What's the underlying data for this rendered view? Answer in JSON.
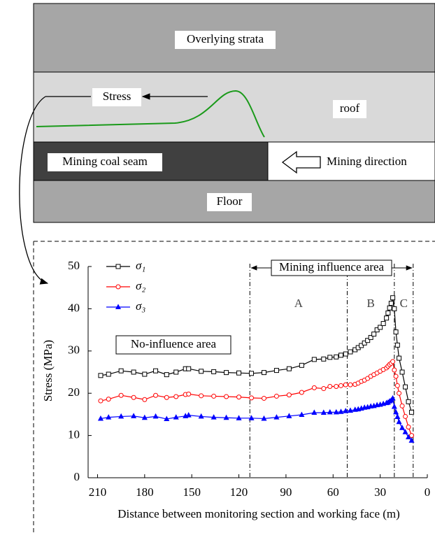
{
  "diagram": {
    "overlying": "Overlying strata",
    "roof": "roof",
    "stress": "Stress",
    "seam": "Mining coal seam",
    "direction": "Mining direction",
    "floor": "Floor"
  },
  "chart_data": {
    "type": "line",
    "x_label": "Distance between monitoring section and working face (m)",
    "y_label": "Stress (MPa)",
    "xlim": [
      216,
      0
    ],
    "xticks": [
      210,
      180,
      150,
      120,
      90,
      60,
      30,
      0
    ],
    "ylim": [
      0,
      50
    ],
    "yticks": [
      0,
      10,
      20,
      30,
      40,
      50
    ],
    "x": [
      208,
      203,
      195,
      187,
      180,
      173,
      166,
      160,
      154,
      152,
      144,
      136,
      128,
      120,
      112,
      104,
      96,
      88,
      80,
      72,
      66,
      62,
      58,
      55,
      52,
      49,
      46,
      44,
      42,
      40,
      38,
      36,
      34,
      32,
      30,
      28,
      26,
      25,
      24,
      23,
      22,
      21,
      20,
      19,
      18,
      16,
      14,
      12,
      10
    ],
    "series": [
      {
        "name": "σ₁",
        "color": "#000000",
        "marker": "square",
        "values": [
          24.2,
          24.5,
          25.3,
          25.0,
          24.5,
          25.3,
          24.4,
          25.0,
          25.8,
          25.8,
          25.2,
          25.1,
          24.9,
          24.8,
          24.7,
          24.9,
          25.4,
          25.8,
          26.6,
          28.0,
          28.1,
          28.5,
          28.6,
          29.0,
          29.3,
          29.8,
          30.3,
          30.8,
          31.3,
          31.9,
          32.5,
          33.2,
          34.0,
          35.0,
          35.6,
          36.5,
          37.8,
          39.0,
          40.2,
          41.3,
          42.6,
          40.0,
          34.5,
          31.4,
          28.3,
          25.0,
          21.5,
          18.0,
          15.5
        ]
      },
      {
        "name": "σ₂",
        "color": "#ff0000",
        "marker": "circle",
        "values": [
          18.2,
          18.6,
          19.5,
          19.0,
          18.5,
          19.5,
          19.0,
          19.2,
          19.7,
          19.8,
          19.4,
          19.3,
          19.2,
          19.1,
          18.9,
          18.8,
          19.3,
          19.6,
          20.2,
          21.3,
          21.1,
          21.6,
          21.6,
          21.8,
          22.0,
          22.0,
          22.1,
          22.4,
          22.8,
          23.1,
          23.5,
          24.0,
          24.4,
          24.8,
          25.2,
          25.6,
          26.0,
          26.4,
          26.8,
          27.1,
          27.5,
          25.5,
          24.0,
          21.8,
          20.0,
          17.0,
          14.5,
          12.0,
          10.0
        ]
      },
      {
        "name": "σ₃",
        "color": "#0000ff",
        "marker": "triangle",
        "values": [
          14.0,
          14.3,
          14.5,
          14.6,
          14.2,
          14.5,
          13.9,
          14.3,
          14.6,
          14.8,
          14.5,
          14.3,
          14.2,
          14.1,
          14.1,
          14.0,
          14.3,
          14.6,
          14.9,
          15.4,
          15.4,
          15.5,
          15.5,
          15.6,
          15.8,
          15.9,
          16.1,
          16.2,
          16.4,
          16.6,
          16.7,
          16.9,
          17.0,
          17.2,
          17.3,
          17.5,
          17.7,
          17.8,
          18.1,
          18.3,
          18.8,
          16.8,
          15.5,
          14.4,
          13.2,
          11.8,
          10.8,
          9.6,
          8.8
        ]
      }
    ],
    "zone_lines": [
      113,
      51,
      21,
      9
    ],
    "zone_labels": [
      "A",
      "B",
      "C"
    ],
    "influence_label": "Mining influence area",
    "no_influence_label": "No-influence area",
    "legend": "top-left"
  }
}
